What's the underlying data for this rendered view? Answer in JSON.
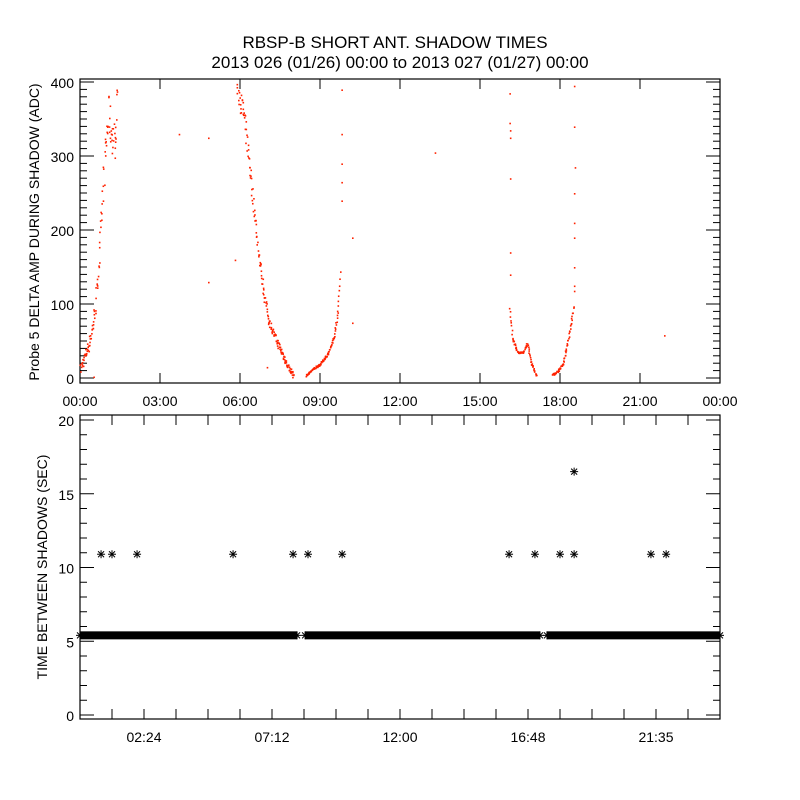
{
  "title": {
    "line1": "RBSP-B SHORT ANT. SHADOW TIMES",
    "line2": "2013 026 (01/26) 00:00 to 2013 027 (01/27) 00:00"
  },
  "colors": {
    "delta_amp": "#ff2200",
    "shadow_gap": "#000000",
    "axes": "#000000"
  },
  "chart_data": [
    {
      "type": "scatter",
      "title": "RBSP-B SHORT ANT. SHADOW TIMES",
      "xlabel": "",
      "ylabel": "Probe 5 DELTA AMP DURING SHADOW (ADC)",
      "x_units": "hours",
      "xlim": [
        0,
        24
      ],
      "ylim": [
        0,
        400
      ],
      "xtick_labels": [
        "00:00",
        "03:00",
        "06:00",
        "09:00",
        "12:00",
        "15:00",
        "18:00",
        "21:00",
        "00:00"
      ],
      "xtick_values": [
        0,
        3,
        6,
        9,
        12,
        15,
        18,
        21,
        24
      ],
      "ytick_labels": [
        "0",
        "100",
        "200",
        "300",
        "400"
      ],
      "ytick_values": [
        0,
        100,
        200,
        300,
        400
      ],
      "grid": false,
      "dense_segments": [
        {
          "name": "pass-1-rise",
          "knots": [
            [
              0.0,
              12
            ],
            [
              0.15,
              30
            ],
            [
              0.3,
              45
            ],
            [
              0.45,
              70
            ],
            [
              0.55,
              95
            ],
            [
              0.65,
              140
            ],
            [
              0.75,
              190
            ],
            [
              0.85,
              260
            ],
            [
              0.95,
              320
            ],
            [
              1.05,
              360
            ],
            [
              1.15,
              330
            ],
            [
              1.3,
              320
            ],
            [
              1.4,
              400
            ]
          ],
          "spread": 45
        },
        {
          "name": "pass-2-fall",
          "knots": [
            [
              5.85,
              400
            ],
            [
              6.1,
              360
            ],
            [
              6.3,
              300
            ],
            [
              6.5,
              230
            ],
            [
              6.7,
              160
            ],
            [
              6.9,
              110
            ],
            [
              7.05,
              80
            ],
            [
              7.3,
              55
            ],
            [
              7.55,
              35
            ],
            [
              7.8,
              15
            ],
            [
              8.0,
              3
            ]
          ],
          "spread": 25
        },
        {
          "name": "pass-3-rise",
          "knots": [
            [
              8.45,
              4
            ],
            [
              8.7,
              12
            ],
            [
              9.0,
              20
            ],
            [
              9.3,
              35
            ],
            [
              9.5,
              55
            ],
            [
              9.65,
              90
            ],
            [
              9.75,
              150
            ]
          ],
          "spread": 8
        },
        {
          "name": "pass-4-fall",
          "knots": [
            [
              16.1,
              95
            ],
            [
              16.2,
              55
            ],
            [
              16.4,
              35
            ],
            [
              16.6,
              35
            ],
            [
              16.75,
              48
            ],
            [
              16.9,
              22
            ],
            [
              17.1,
              3
            ]
          ],
          "spread": 8
        },
        {
          "name": "pass-5-rise",
          "knots": [
            [
              17.7,
              5
            ],
            [
              17.9,
              10
            ],
            [
              18.1,
              20
            ],
            [
              18.25,
              45
            ],
            [
              18.4,
              75
            ],
            [
              18.5,
              100
            ]
          ],
          "spread": 8
        }
      ],
      "points": [
        [
          0.5,
          2
        ],
        [
          3.7,
          330
        ],
        [
          4.8,
          325
        ],
        [
          4.8,
          130
        ],
        [
          5.8,
          160
        ],
        [
          7.0,
          15
        ],
        [
          9.8,
          390
        ],
        [
          9.8,
          330
        ],
        [
          9.8,
          290
        ],
        [
          9.8,
          265
        ],
        [
          9.8,
          240
        ],
        [
          10.2,
          190
        ],
        [
          10.2,
          75
        ],
        [
          13.3,
          305
        ],
        [
          16.1,
          385
        ],
        [
          16.1,
          345
        ],
        [
          16.12,
          335
        ],
        [
          16.12,
          325
        ],
        [
          16.12,
          270
        ],
        [
          16.12,
          170
        ],
        [
          16.12,
          140
        ],
        [
          18.52,
          395
        ],
        [
          18.52,
          340
        ],
        [
          18.55,
          285
        ],
        [
          18.52,
          250
        ],
        [
          18.52,
          210
        ],
        [
          18.52,
          190
        ],
        [
          18.52,
          150
        ],
        [
          18.52,
          125
        ],
        [
          18.52,
          118
        ],
        [
          21.9,
          58
        ]
      ]
    },
    {
      "type": "scatter",
      "xlabel": "",
      "ylabel": "TIME BETWEEN SHADOWS (SEC)",
      "x_units": "hours",
      "xlim": [
        0,
        24
      ],
      "ylim": [
        0,
        20
      ],
      "xtick_labels": [
        "02:24",
        "07:12",
        "12:00",
        "16:48",
        "21:35"
      ],
      "xtick_values": [
        2.4,
        7.2,
        12.0,
        16.8,
        21.6
      ],
      "ytick_labels": [
        "0",
        "5",
        "10",
        "15",
        "20"
      ],
      "ytick_values": [
        0,
        5,
        10,
        15,
        20
      ],
      "grid": false,
      "marker": "asterisk",
      "baseline_value": 5.4,
      "baseline_ranges": [
        [
          0.0,
          8.14
        ],
        [
          8.44,
          17.25
        ],
        [
          17.51,
          24.0
        ]
      ],
      "points": [
        [
          0.79,
          10.9
        ],
        [
          1.2,
          10.9
        ],
        [
          2.14,
          10.9
        ],
        [
          5.74,
          10.9
        ],
        [
          7.99,
          10.9
        ],
        [
          8.55,
          10.9
        ],
        [
          9.83,
          10.9
        ],
        [
          16.09,
          10.9
        ],
        [
          17.06,
          10.9
        ],
        [
          18.0,
          10.9
        ],
        [
          18.53,
          10.9
        ],
        [
          18.53,
          16.5
        ],
        [
          21.41,
          10.9
        ],
        [
          21.98,
          10.9
        ]
      ]
    }
  ]
}
